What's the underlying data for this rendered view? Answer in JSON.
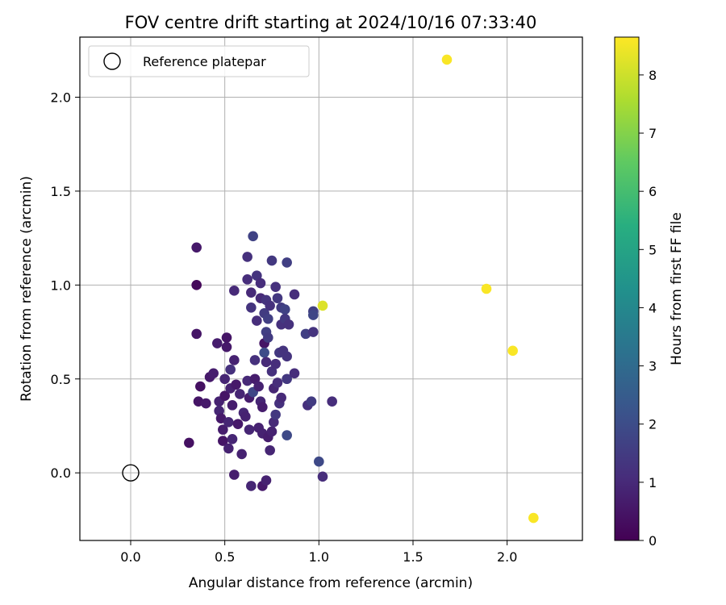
{
  "chart_data": {
    "type": "scatter",
    "title": "FOV centre drift starting at 2024/10/16 07:33:40",
    "xlabel": "Angular distance from reference (arcmin)",
    "ylabel": "Rotation from reference (arcmin)",
    "xlim": [
      -0.27,
      2.4
    ],
    "ylim": [
      -0.36,
      2.32
    ],
    "x_ticks": [
      "0.0",
      "0.5",
      "1.0",
      "1.5",
      "2.0"
    ],
    "y_ticks": [
      "0.0",
      "0.5",
      "1.0",
      "1.5",
      "2.0"
    ],
    "grid": true,
    "legend": {
      "position": "top-left",
      "entries": [
        "Reference platepar"
      ]
    },
    "reference_point": {
      "x": 0.0,
      "y": 0.0,
      "marker": "open-circle"
    },
    "colorbar": {
      "label": "Hours from first FF file",
      "min": 0,
      "max": 8.65,
      "ticks": [
        "0",
        "1",
        "2",
        "3",
        "4",
        "5",
        "6",
        "7",
        "8"
      ],
      "colormap": "viridis"
    },
    "points": [
      {
        "x": 0.35,
        "y": 1.2,
        "t": 0.6
      },
      {
        "x": 0.35,
        "y": 1.0,
        "t": 0.2
      },
      {
        "x": 0.35,
        "y": 0.74,
        "t": 0.5
      },
      {
        "x": 0.31,
        "y": 0.16,
        "t": 0.4
      },
      {
        "x": 0.36,
        "y": 0.38,
        "t": 0.5
      },
      {
        "x": 0.37,
        "y": 0.46,
        "t": 0.4
      },
      {
        "x": 0.4,
        "y": 0.37,
        "t": 0.6
      },
      {
        "x": 0.42,
        "y": 0.51,
        "t": 0.6
      },
      {
        "x": 0.44,
        "y": 0.53,
        "t": 0.7
      },
      {
        "x": 0.46,
        "y": 0.69,
        "t": 0.7
      },
      {
        "x": 0.47,
        "y": 0.38,
        "t": 0.8
      },
      {
        "x": 0.47,
        "y": 0.33,
        "t": 0.9
      },
      {
        "x": 0.48,
        "y": 0.29,
        "t": 0.6
      },
      {
        "x": 0.49,
        "y": 0.23,
        "t": 0.7
      },
      {
        "x": 0.49,
        "y": 0.17,
        "t": 0.5
      },
      {
        "x": 0.5,
        "y": 0.41,
        "t": 0.5
      },
      {
        "x": 0.5,
        "y": 0.5,
        "t": 0.9
      },
      {
        "x": 0.51,
        "y": 0.67,
        "t": 0.6
      },
      {
        "x": 0.51,
        "y": 0.72,
        "t": 0.5
      },
      {
        "x": 0.52,
        "y": 0.13,
        "t": 0.8
      },
      {
        "x": 0.52,
        "y": 0.27,
        "t": 0.9
      },
      {
        "x": 0.53,
        "y": 0.55,
        "t": 1.2
      },
      {
        "x": 0.53,
        "y": 0.45,
        "t": 0.8
      },
      {
        "x": 0.54,
        "y": 0.36,
        "t": 0.7
      },
      {
        "x": 0.54,
        "y": 0.18,
        "t": 0.9
      },
      {
        "x": 0.55,
        "y": 0.97,
        "t": 1.0
      },
      {
        "x": 0.55,
        "y": 0.6,
        "t": 0.8
      },
      {
        "x": 0.55,
        "y": -0.01,
        "t": 0.7
      },
      {
        "x": 0.56,
        "y": 0.47,
        "t": 0.6
      },
      {
        "x": 0.57,
        "y": 0.26,
        "t": 0.6
      },
      {
        "x": 0.58,
        "y": 0.42,
        "t": 0.9
      },
      {
        "x": 0.59,
        "y": 0.1,
        "t": 0.8
      },
      {
        "x": 0.6,
        "y": 0.32,
        "t": 0.9
      },
      {
        "x": 0.61,
        "y": 0.3,
        "t": 0.8
      },
      {
        "x": 0.62,
        "y": 1.15,
        "t": 1.2
      },
      {
        "x": 0.62,
        "y": 1.03,
        "t": 1.1
      },
      {
        "x": 0.62,
        "y": 0.49,
        "t": 1.0
      },
      {
        "x": 0.63,
        "y": 0.4,
        "t": 0.7
      },
      {
        "x": 0.63,
        "y": 0.23,
        "t": 0.9
      },
      {
        "x": 0.64,
        "y": 0.96,
        "t": 1.0
      },
      {
        "x": 0.64,
        "y": 0.88,
        "t": 1.3
      },
      {
        "x": 0.64,
        "y": -0.07,
        "t": 0.9
      },
      {
        "x": 0.65,
        "y": 1.26,
        "t": 1.7
      },
      {
        "x": 0.65,
        "y": 0.43,
        "t": 1.8
      },
      {
        "x": 0.66,
        "y": 0.5,
        "t": 0.7
      },
      {
        "x": 0.66,
        "y": 0.6,
        "t": 1.2
      },
      {
        "x": 0.67,
        "y": 1.05,
        "t": 1.3
      },
      {
        "x": 0.67,
        "y": 0.81,
        "t": 1.1
      },
      {
        "x": 0.68,
        "y": 0.46,
        "t": 0.8
      },
      {
        "x": 0.68,
        "y": 0.24,
        "t": 0.8
      },
      {
        "x": 0.69,
        "y": 1.01,
        "t": 1.1
      },
      {
        "x": 0.69,
        "y": 0.93,
        "t": 1.0
      },
      {
        "x": 0.69,
        "y": 0.38,
        "t": 0.9
      },
      {
        "x": 0.7,
        "y": 0.21,
        "t": 0.8
      },
      {
        "x": 0.7,
        "y": -0.07,
        "t": 0.6
      },
      {
        "x": 0.7,
        "y": 0.35,
        "t": 0.7
      },
      {
        "x": 0.71,
        "y": 0.69,
        "t": 0.5
      },
      {
        "x": 0.71,
        "y": 0.64,
        "t": 2.0
      },
      {
        "x": 0.71,
        "y": 0.85,
        "t": 1.5
      },
      {
        "x": 0.72,
        "y": 0.92,
        "t": 1.3
      },
      {
        "x": 0.72,
        "y": 0.75,
        "t": 1.6
      },
      {
        "x": 0.72,
        "y": 0.59,
        "t": 1.0
      },
      {
        "x": 0.72,
        "y": -0.04,
        "t": 0.8
      },
      {
        "x": 0.73,
        "y": 0.82,
        "t": 1.6
      },
      {
        "x": 0.73,
        "y": 0.72,
        "t": 1.5
      },
      {
        "x": 0.73,
        "y": 0.19,
        "t": 0.7
      },
      {
        "x": 0.74,
        "y": 0.12,
        "t": 0.9
      },
      {
        "x": 0.74,
        "y": 0.89,
        "t": 1.2
      },
      {
        "x": 0.75,
        "y": 0.54,
        "t": 1.2
      },
      {
        "x": 0.75,
        "y": 0.22,
        "t": 0.8
      },
      {
        "x": 0.75,
        "y": 1.13,
        "t": 1.4
      },
      {
        "x": 0.76,
        "y": 0.45,
        "t": 0.9
      },
      {
        "x": 0.76,
        "y": 0.27,
        "t": 1.0
      },
      {
        "x": 0.77,
        "y": 0.99,
        "t": 1.2
      },
      {
        "x": 0.77,
        "y": 0.58,
        "t": 1.1
      },
      {
        "x": 0.77,
        "y": 0.31,
        "t": 1.4
      },
      {
        "x": 0.78,
        "y": 0.48,
        "t": 1.1
      },
      {
        "x": 0.78,
        "y": 0.93,
        "t": 1.4
      },
      {
        "x": 0.79,
        "y": 0.64,
        "t": 1.4
      },
      {
        "x": 0.79,
        "y": 0.37,
        "t": 1.2
      },
      {
        "x": 0.8,
        "y": 0.88,
        "t": 1.5
      },
      {
        "x": 0.8,
        "y": 0.79,
        "t": 1.2
      },
      {
        "x": 0.8,
        "y": 0.4,
        "t": 1.0
      },
      {
        "x": 0.81,
        "y": 0.65,
        "t": 1.3
      },
      {
        "x": 0.82,
        "y": 0.87,
        "t": 1.7
      },
      {
        "x": 0.82,
        "y": 0.82,
        "t": 1.4
      },
      {
        "x": 0.83,
        "y": 1.12,
        "t": 1.6
      },
      {
        "x": 0.83,
        "y": 0.62,
        "t": 1.3
      },
      {
        "x": 0.83,
        "y": 0.5,
        "t": 1.4
      },
      {
        "x": 0.83,
        "y": 0.2,
        "t": 1.9
      },
      {
        "x": 0.84,
        "y": 0.79,
        "t": 1.2
      },
      {
        "x": 0.87,
        "y": 0.95,
        "t": 1.1
      },
      {
        "x": 0.87,
        "y": 0.53,
        "t": 1.1
      },
      {
        "x": 0.93,
        "y": 0.74,
        "t": 1.6
      },
      {
        "x": 0.94,
        "y": 0.36,
        "t": 1.2
      },
      {
        "x": 0.96,
        "y": 0.38,
        "t": 1.5
      },
      {
        "x": 0.97,
        "y": 0.86,
        "t": 1.6
      },
      {
        "x": 0.97,
        "y": 0.84,
        "t": 1.8
      },
      {
        "x": 0.97,
        "y": 0.75,
        "t": 1.3
      },
      {
        "x": 1.0,
        "y": 0.06,
        "t": 1.9
      },
      {
        "x": 1.02,
        "y": 0.89,
        "t": 8.2
      },
      {
        "x": 1.02,
        "y": -0.02,
        "t": 1.1
      },
      {
        "x": 1.07,
        "y": 0.38,
        "t": 1.1
      },
      {
        "x": 1.68,
        "y": 2.2,
        "t": 8.6
      },
      {
        "x": 1.89,
        "y": 0.98,
        "t": 8.6
      },
      {
        "x": 2.03,
        "y": 0.65,
        "t": 8.6
      },
      {
        "x": 2.14,
        "y": -0.24,
        "t": 8.6
      }
    ]
  }
}
